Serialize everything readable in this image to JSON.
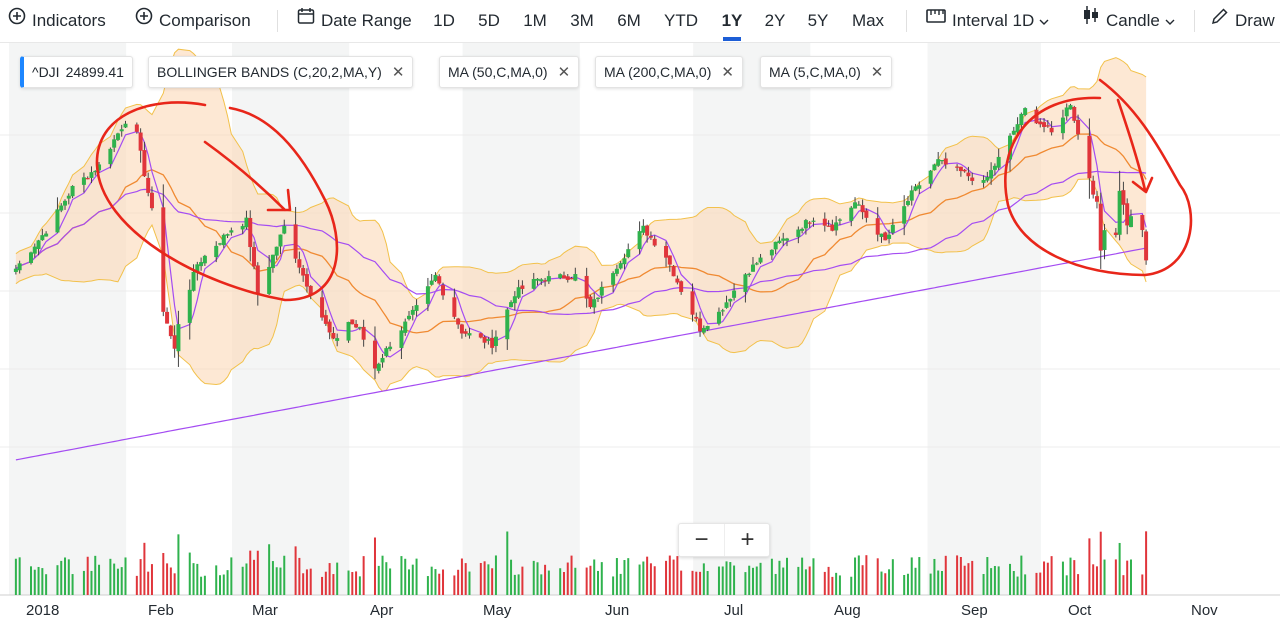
{
  "toolbar": {
    "indicators": "Indicators",
    "comparison": "Comparison",
    "date_range": "Date Range",
    "ranges": [
      "1D",
      "5D",
      "1M",
      "3M",
      "6M",
      "YTD",
      "1Y",
      "2Y",
      "5Y",
      "Max"
    ],
    "active_range": "1Y",
    "interval": "Interval",
    "interval_value": "1D",
    "chart_type": "Candle",
    "draw": "Draw"
  },
  "chips": {
    "symbol": "^DJI",
    "symbol_value": "24899.41",
    "bollinger": "BOLLINGER BANDS (C,20,2,MA,Y)",
    "ma50": "MA (50,C,MA,0)",
    "ma200": "MA (200,C,MA,0)",
    "ma5": "MA (5,C,MA,0)"
  },
  "zoom": {
    "minus": "−",
    "plus": "+"
  },
  "colors": {
    "up": "#2fb24d",
    "down": "#e0353b",
    "band_fill": "#fbd9b8",
    "band_edge": "#f2c14b",
    "ma20": "#f08a32",
    "ma_purple": "#a44cf2",
    "annotation": "#e8261a",
    "active_range": "#1d5ed6"
  },
  "chart_data": {
    "type": "candlestick",
    "x_labels": [
      "2018",
      "Feb",
      "Mar",
      "Apr",
      "May",
      "Jun",
      "Jul",
      "Aug",
      "Sep",
      "Oct",
      "Nov"
    ],
    "x_dates": [
      "2018-01-01",
      "2018-02-01",
      "2018-03-01",
      "2018-04-01",
      "2018-05-01",
      "2018-06-01",
      "2018-07-01",
      "2018-08-01",
      "2018-09-01",
      "2018-10-01",
      "2018-11-01"
    ],
    "y_range": [
      22900,
      26800
    ],
    "last_close": 24899.41,
    "close_anchors": [
      [
        "2017-12-28",
        24837
      ],
      [
        "2018-01-05",
        25295
      ],
      [
        "2018-01-12",
        25803
      ],
      [
        "2018-01-19",
        26071
      ],
      [
        "2018-01-26",
        26616
      ],
      [
        "2018-01-29",
        26439
      ],
      [
        "2018-02-02",
        25521
      ],
      [
        "2018-02-05",
        24346
      ],
      [
        "2018-02-08",
        23860
      ],
      [
        "2018-02-09",
        24190
      ],
      [
        "2018-02-14",
        24893
      ],
      [
        "2018-02-23",
        25310
      ],
      [
        "2018-02-27",
        25410
      ],
      [
        "2018-03-02",
        24538
      ],
      [
        "2018-03-09",
        25336
      ],
      [
        "2018-03-14",
        24758
      ],
      [
        "2018-03-22",
        23957
      ],
      [
        "2018-03-26",
        24202
      ],
      [
        "2018-03-29",
        24103
      ],
      [
        "2018-04-02",
        23644
      ],
      [
        "2018-04-06",
        23933
      ],
      [
        "2018-04-13",
        24360
      ],
      [
        "2018-04-18",
        24748
      ],
      [
        "2018-04-25",
        24084
      ],
      [
        "2018-05-03",
        23930
      ],
      [
        "2018-05-09",
        24542
      ],
      [
        "2018-05-15",
        24706
      ],
      [
        "2018-05-25",
        24753
      ],
      [
        "2018-05-29",
        24361
      ],
      [
        "2018-06-04",
        24813
      ],
      [
        "2018-06-12",
        25320
      ],
      [
        "2018-06-18",
        24988
      ],
      [
        "2018-06-22",
        24581
      ],
      [
        "2018-06-27",
        24117
      ],
      [
        "2018-07-02",
        24307
      ],
      [
        "2018-07-09",
        24776
      ],
      [
        "2018-07-17",
        25119
      ],
      [
        "2018-07-27",
        25451
      ],
      [
        "2018-08-01",
        25333
      ],
      [
        "2018-08-07",
        25628
      ],
      [
        "2018-08-15",
        25162
      ],
      [
        "2018-08-22",
        25733
      ],
      [
        "2018-08-29",
        26124
      ],
      [
        "2018-09-05",
        25974
      ],
      [
        "2018-09-10",
        25857
      ],
      [
        "2018-09-14",
        26154
      ],
      [
        "2018-09-21",
        26743
      ],
      [
        "2018-09-28",
        26458
      ],
      [
        "2018-10-03",
        26828
      ],
      [
        "2018-10-05",
        26447
      ],
      [
        "2018-10-10",
        25598
      ],
      [
        "2018-10-11",
        25052
      ],
      [
        "2018-10-12",
        25340
      ],
      [
        "2018-10-15",
        25250
      ],
      [
        "2018-10-16",
        25798
      ],
      [
        "2018-10-18",
        25379
      ],
      [
        "2018-10-19",
        25444
      ],
      [
        "2018-10-22",
        25317
      ],
      [
        "2018-10-23",
        24899
      ]
    ]
  }
}
